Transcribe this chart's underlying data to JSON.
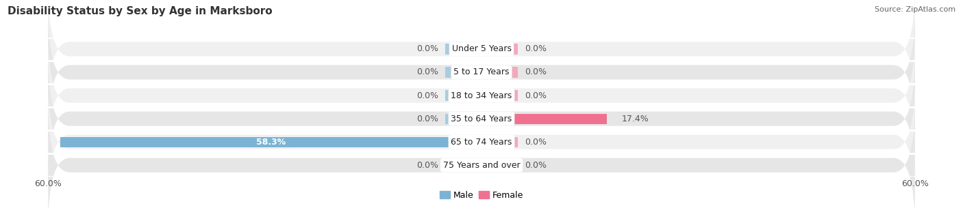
{
  "title": "Disability Status by Sex by Age in Marksboro",
  "source": "Source: ZipAtlas.com",
  "categories": [
    "Under 5 Years",
    "5 to 17 Years",
    "18 to 34 Years",
    "35 to 64 Years",
    "65 to 74 Years",
    "75 Years and over"
  ],
  "male_values": [
    0.0,
    0.0,
    0.0,
    0.0,
    58.3,
    0.0
  ],
  "female_values": [
    0.0,
    0.0,
    0.0,
    17.4,
    0.0,
    0.0
  ],
  "male_color": "#7ab3d4",
  "female_color": "#f07090",
  "male_color_light": "#aaccdf",
  "female_color_light": "#f4a8bc",
  "row_bg_odd": "#f0f0f0",
  "row_bg_even": "#e6e6e6",
  "xlim": 60.0,
  "title_fontsize": 11,
  "source_fontsize": 8,
  "label_fontsize": 9,
  "tick_fontsize": 9,
  "category_fontsize": 9,
  "legend_fontsize": 9,
  "min_bar_width": 5.0
}
